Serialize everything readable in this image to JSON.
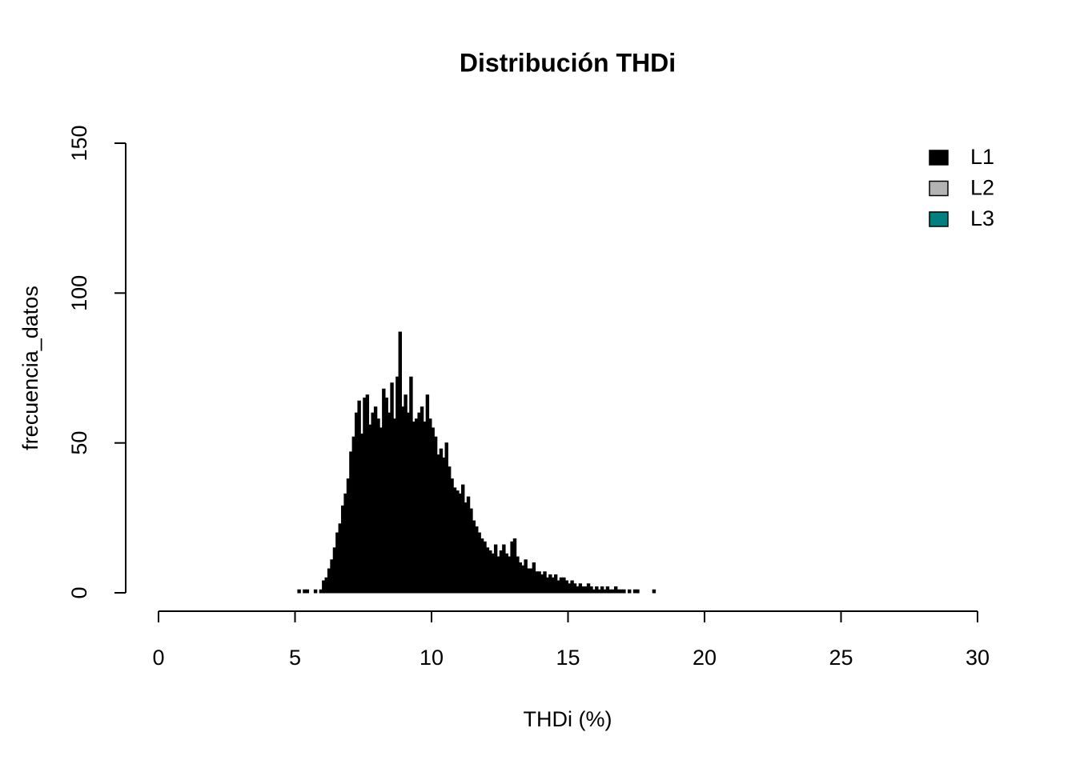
{
  "chart_data": {
    "type": "histogram",
    "title": "Distribución THDi",
    "x_label": "THDi (%)",
    "y_label": "frecuencia_datos",
    "xlim": [
      0,
      30
    ],
    "xticks": [
      0,
      5,
      10,
      15,
      20,
      25,
      30
    ],
    "ylim": [
      0,
      150
    ],
    "yticks": [
      0,
      50,
      100,
      150
    ],
    "legend_position": "topright",
    "legend": [
      {
        "name": "L1",
        "color": "#000000"
      },
      {
        "name": "L2",
        "color": "#b3b3b3"
      },
      {
        "name": "L3",
        "color": "#008080"
      }
    ],
    "series": [
      {
        "name": "L1",
        "color": "#000000",
        "bins": [
          5.1,
          5.2,
          5.3,
          5.4,
          5.5,
          5.6,
          5.7,
          5.8,
          5.9,
          6.0,
          6.1,
          6.2,
          6.3,
          6.4,
          6.5,
          6.6,
          6.7,
          6.8,
          6.9,
          7.0,
          7.1,
          7.2,
          7.3,
          7.4,
          7.5,
          7.6,
          7.7,
          7.8,
          7.9,
          8.0,
          8.1,
          8.2,
          8.3,
          8.4,
          8.5,
          8.6,
          8.7,
          8.8,
          8.9,
          9.0,
          9.1,
          9.2,
          9.3,
          9.4,
          9.5,
          9.6,
          9.7,
          9.8,
          9.9,
          10.0,
          10.1,
          10.2,
          10.3,
          10.4,
          10.5,
          10.6,
          10.7,
          10.8,
          10.9,
          11.0,
          11.1,
          11.2,
          11.3,
          11.4,
          11.5,
          11.6,
          11.7,
          11.8,
          11.9,
          12.0,
          12.1,
          12.2,
          12.3,
          12.4,
          12.5,
          12.6,
          12.7,
          12.8,
          12.9,
          13.0,
          13.1,
          13.2,
          13.3,
          13.4,
          13.5,
          13.6,
          13.7,
          13.8,
          13.9,
          14.0,
          14.1,
          14.2,
          14.3,
          14.4,
          14.5,
          14.6,
          14.7,
          14.8,
          14.9,
          15.0,
          15.1,
          15.2,
          15.3,
          15.4,
          15.5,
          15.6,
          15.7,
          15.8,
          15.9,
          16.0,
          16.1,
          16.2,
          16.3,
          16.4,
          16.5,
          16.6,
          16.7,
          16.8,
          16.9,
          17.0,
          17.1,
          17.2,
          17.3,
          17.4,
          17.5,
          17.6,
          17.7,
          17.8,
          17.9,
          18.0,
          18.1,
          18.2
        ],
        "values": [
          1,
          0,
          1,
          1,
          0,
          0,
          1,
          0,
          1,
          4,
          5,
          8,
          11,
          15,
          20,
          23,
          29,
          33,
          38,
          47,
          52,
          60,
          64,
          53,
          65,
          66,
          56,
          60,
          62,
          58,
          55,
          68,
          65,
          60,
          70,
          58,
          72,
          87,
          62,
          66,
          60,
          72,
          57,
          58,
          60,
          62,
          57,
          66,
          58,
          55,
          52,
          46,
          48,
          45,
          50,
          42,
          38,
          35,
          34,
          33,
          36,
          30,
          32,
          28,
          24,
          22,
          20,
          18,
          17,
          15,
          14,
          13,
          16,
          12,
          14,
          16,
          13,
          12,
          17,
          18,
          12,
          10,
          9,
          11,
          8,
          8,
          10,
          7,
          7,
          6,
          7,
          5,
          6,
          5,
          6,
          4,
          5,
          5,
          4,
          3,
          4,
          3,
          2,
          3,
          2,
          2,
          3,
          2,
          1,
          2,
          1,
          2,
          1,
          2,
          1,
          1,
          2,
          1,
          1,
          1,
          0,
          1,
          0,
          1,
          1,
          0,
          0,
          0,
          0,
          0,
          1
        ]
      }
    ]
  }
}
